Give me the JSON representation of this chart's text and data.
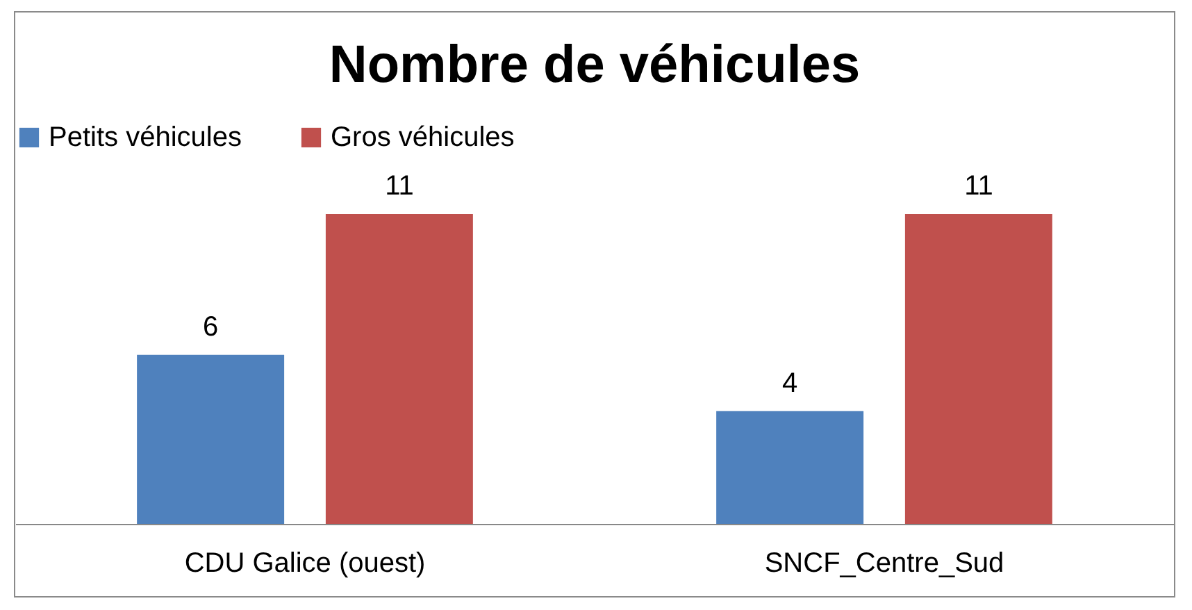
{
  "chart_data": {
    "type": "bar",
    "title": "Nombre de véhicules",
    "categories": [
      "CDU Galice (ouest)",
      "SNCF_Centre_Sud"
    ],
    "series": [
      {
        "name": "Petits véhicules",
        "color": "#4f81bd",
        "values": [
          6,
          4
        ]
      },
      {
        "name": "Gros véhicules",
        "color": "#c0504d",
        "values": [
          11,
          11
        ]
      }
    ],
    "data_labels": true,
    "legend": "top",
    "grid": false
  }
}
